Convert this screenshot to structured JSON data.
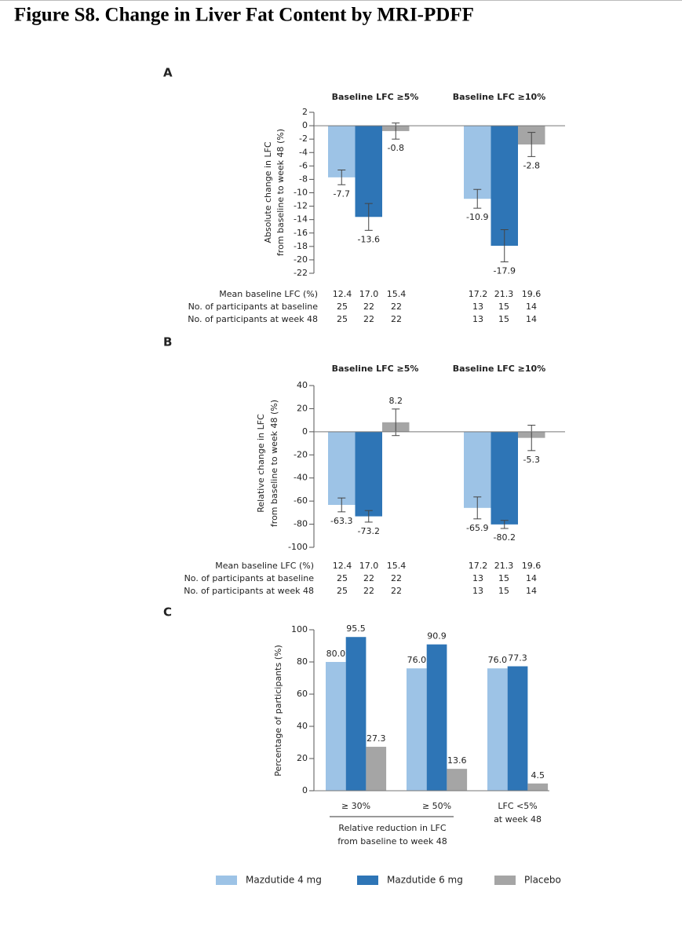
{
  "title": "Figure S8. Change in Liver Fat Content by MRI-PDFF",
  "chart_data": [
    {
      "type": "bar",
      "panel": "A",
      "ylabel": [
        "Absolute change in LFC",
        "from baseline to week 48 (%)"
      ],
      "categories": [
        "Baseline LFC ≥5%",
        "Baseline LFC ≥10%"
      ],
      "series": [
        {
          "name": "Mazdutide 4 mg",
          "color": "#9dc3e6",
          "values": [
            -7.7,
            -10.9
          ],
          "errors": [
            1.1,
            1.4
          ]
        },
        {
          "name": "Mazdutide 6 mg",
          "color": "#2e75b6",
          "values": [
            -13.6,
            -17.9
          ],
          "errors": [
            2.0,
            2.4
          ]
        },
        {
          "name": "Placebo",
          "color": "#a5a5a5",
          "values": [
            -0.8,
            -2.8
          ],
          "errors": [
            1.2,
            1.8
          ]
        }
      ],
      "ylim": [
        -22,
        2
      ],
      "yticks": [
        -22,
        -20,
        -18,
        -16,
        -14,
        -12,
        -10,
        -8,
        -6,
        -4,
        -2,
        0,
        2
      ],
      "table": {
        "rows": [
          {
            "label": "Mean baseline LFC (%)",
            "cells": [
              [
                "12.4",
                "17.0",
                "15.4"
              ],
              [
                "17.2",
                "21.3",
                "19.6"
              ]
            ]
          },
          {
            "label": "No. of participants at baseline",
            "cells": [
              [
                "25",
                "22",
                "22"
              ],
              [
                "13",
                "15",
                "14"
              ]
            ]
          },
          {
            "label": "No. of participants at week 48",
            "cells": [
              [
                "25",
                "22",
                "22"
              ],
              [
                "13",
                "15",
                "14"
              ]
            ]
          }
        ]
      }
    },
    {
      "type": "bar",
      "panel": "B",
      "ylabel": [
        "Relative change in LFC",
        "from baseline to week 48 (%)"
      ],
      "categories": [
        "Baseline LFC ≥5%",
        "Baseline LFC ≥10%"
      ],
      "series": [
        {
          "name": "Mazdutide 4 mg",
          "color": "#9dc3e6",
          "values": [
            -63.3,
            -65.9
          ],
          "errors": [
            6,
            9.5
          ]
        },
        {
          "name": "Mazdutide 6 mg",
          "color": "#2e75b6",
          "values": [
            -73.2,
            -80.2
          ],
          "errors": [
            5,
            3.5
          ]
        },
        {
          "name": "Placebo",
          "color": "#a5a5a5",
          "values": [
            8.2,
            -5.3
          ],
          "errors": [
            11.5,
            11
          ]
        }
      ],
      "ylim": [
        -100,
        40
      ],
      "yticks": [
        -100,
        -80,
        -60,
        -40,
        -20,
        0,
        20,
        40
      ],
      "table": {
        "rows": [
          {
            "label": "Mean baseline LFC (%)",
            "cells": [
              [
                "12.4",
                "17.0",
                "15.4"
              ],
              [
                "17.2",
                "21.3",
                "19.6"
              ]
            ]
          },
          {
            "label": "No. of participants at baseline",
            "cells": [
              [
                "25",
                "22",
                "22"
              ],
              [
                "13",
                "15",
                "14"
              ]
            ]
          },
          {
            "label": "No. of participants at week 48",
            "cells": [
              [
                "25",
                "22",
                "22"
              ],
              [
                "13",
                "15",
                "14"
              ]
            ]
          }
        ]
      }
    },
    {
      "type": "bar",
      "panel": "C",
      "ylabel": [
        "Percentage of participants (%)"
      ],
      "categories": [
        [
          "≥ 30%"
        ],
        [
          "≥ 50%"
        ],
        [
          "LFC <5%",
          "at week 48"
        ]
      ],
      "xgroup_label": [
        "Relative reduction in LFC",
        "from baseline to week 48"
      ],
      "series": [
        {
          "name": "Mazdutide 4 mg",
          "color": "#9dc3e6",
          "values": [
            80.0,
            76.0,
            76.0
          ],
          "value_labels": [
            "80.0",
            "76.0",
            "76.0"
          ]
        },
        {
          "name": "Mazdutide 6 mg",
          "color": "#2e75b6",
          "values": [
            95.5,
            90.9,
            77.3
          ]
        },
        {
          "name": "Placebo",
          "color": "#a5a5a5",
          "values": [
            27.3,
            13.6,
            4.5
          ]
        }
      ],
      "ylim": [
        0,
        100
      ],
      "yticks": [
        0,
        20,
        40,
        60,
        80,
        100
      ]
    }
  ]
}
